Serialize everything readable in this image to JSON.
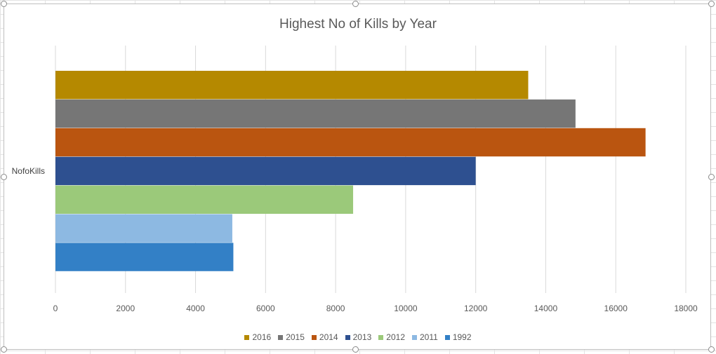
{
  "chart_data": {
    "type": "bar",
    "orientation": "horizontal",
    "title": "Highest No of Kills by Year",
    "categories": [
      "NofoKills"
    ],
    "series": [
      {
        "name": "2016",
        "values": [
          13500
        ],
        "color": "#B58900"
      },
      {
        "name": "2015",
        "values": [
          14850
        ],
        "color": "#767676"
      },
      {
        "name": "2014",
        "values": [
          16850
        ],
        "color": "#BA5510"
      },
      {
        "name": "2013",
        "values": [
          12000
        ],
        "color": "#2E5090"
      },
      {
        "name": "2012",
        "values": [
          8500
        ],
        "color": "#9BC97A"
      },
      {
        "name": "2011",
        "values": [
          5050
        ],
        "color": "#8DB9E2"
      },
      {
        "name": "1992",
        "values": [
          5080
        ],
        "color": "#3380C6"
      }
    ],
    "xlim": [
      0,
      18000
    ],
    "xticks": [
      "0",
      "2000",
      "4000",
      "6000",
      "8000",
      "10000",
      "12000",
      "14000",
      "16000",
      "18000"
    ],
    "grid": true,
    "legend_position": "bottom"
  }
}
